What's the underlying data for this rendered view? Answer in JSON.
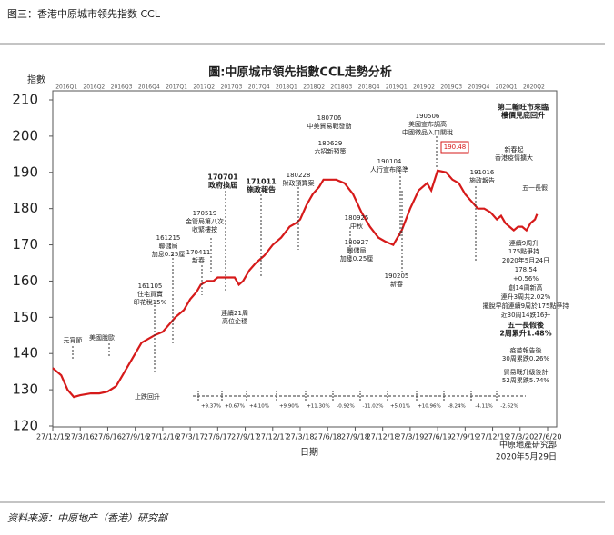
{
  "header": "图三：香港中原城市领先指数 CCL",
  "footer": "资料来源：中原地产（香港）研究部",
  "chart_data": {
    "type": "line",
    "title": "圖:中原城市領先指數CCL走勢分析",
    "y_label": "指數",
    "x_label": "日期",
    "source": "中原地產研究部",
    "date": "2020年5月29日",
    "color": "#d61a1a",
    "quarters": [
      "2016Q1",
      "2016Q2",
      "2016Q3",
      "2016Q4",
      "2017Q1",
      "2017Q2",
      "2017Q3",
      "2017Q4",
      "2018Q1",
      "2018Q2",
      "2018Q3",
      "2018Q4",
      "2019Q1",
      "2019Q2",
      "2019Q3",
      "2019Q4",
      "2020Q1",
      "2020Q2"
    ],
    "x": [
      0,
      4,
      7,
      10,
      13,
      18,
      22,
      26,
      30,
      33,
      36,
      39,
      42,
      45,
      48,
      52,
      55,
      58,
      62,
      65,
      68,
      70,
      73,
      76,
      78,
      82,
      86,
      88,
      90,
      93,
      96,
      100,
      104,
      108,
      112,
      115,
      117,
      120,
      123,
      126,
      128,
      130,
      134,
      138,
      142,
      146,
      150,
      154,
      157,
      161,
      165,
      169,
      173,
      177,
      179,
      182,
      186,
      189,
      192,
      195,
      198,
      201,
      204,
      207,
      210,
      212,
      214,
      216,
      218,
      220,
      222,
      224,
      226,
      228,
      229
    ],
    "values": [
      136,
      134,
      130,
      128,
      128.5,
      129,
      129,
      129.5,
      131,
      134,
      137,
      140,
      143,
      144,
      145,
      146,
      148,
      150,
      152,
      155,
      157,
      159,
      160,
      160,
      161,
      161,
      161,
      159,
      160,
      163,
      165,
      167,
      170,
      172,
      175,
      176,
      177,
      181,
      184,
      186,
      188,
      188,
      188,
      187,
      184,
      179,
      175,
      172,
      171,
      170,
      174,
      180,
      185,
      187,
      185,
      190.5,
      190,
      188,
      187,
      184,
      182,
      180,
      180,
      179,
      177,
      178,
      176,
      175,
      174,
      175,
      175,
      174,
      176,
      177,
      178.5
    ],
    "xlim": [
      0,
      234
    ],
    "xticks": [
      {
        "value": 0,
        "label": "27/12/15"
      },
      {
        "value": 13,
        "label": "27/3/16"
      },
      {
        "value": 26,
        "label": "27/6/16"
      },
      {
        "value": 39,
        "label": "27/9/16"
      },
      {
        "value": 52,
        "label": "27/12/16"
      },
      {
        "value": 65,
        "label": "27/3/17"
      },
      {
        "value": 78,
        "label": "27/6/17"
      },
      {
        "value": 91,
        "label": "27/9/17"
      },
      {
        "value": 104,
        "label": "27/12/17"
      },
      {
        "value": 117,
        "label": "27/3/18"
      },
      {
        "value": 130,
        "label": "27/6/18"
      },
      {
        "value": 143,
        "label": "27/9/18"
      },
      {
        "value": 156,
        "label": "27/12/18"
      },
      {
        "value": 169,
        "label": "27/3/19"
      },
      {
        "value": 182,
        "label": "27/6/19"
      },
      {
        "value": 195,
        "label": "27/9/19"
      },
      {
        "value": 208,
        "label": "27/12/19"
      },
      {
        "value": 221,
        "label": "27/3/20"
      },
      {
        "value": 234,
        "label": "27/6/20"
      }
    ],
    "ylim": [
      120,
      210
    ],
    "yticks": [
      120,
      130,
      140,
      150,
      160,
      170,
      180,
      190,
      200,
      210
    ],
    "annotations": [
      {
        "lines": [
          "元宵節"
        ]
      },
      {
        "lines": [
          "美國脫歐"
        ]
      },
      {
        "lines": [
          "止跌回升"
        ]
      },
      {
        "lines": [
          "161105",
          "住宅買賣",
          "印花稅15%"
        ]
      },
      {
        "lines": [
          "161215",
          "聯儲局",
          "加息0.25厘"
        ]
      },
      {
        "lines": [
          "170411",
          "新春"
        ]
      },
      {
        "lines": [
          "170519",
          "金管局第八次",
          "收緊樓按"
        ]
      },
      {
        "lines": [
          "170701",
          "政府換屆"
        ]
      },
      {
        "lines": [
          "171011",
          "施政報告"
        ]
      },
      {
        "lines": [
          "180228",
          "財政預算案"
        ]
      },
      {
        "lines": [
          "180706",
          "中美貿易戰發動"
        ]
      },
      {
        "lines": [
          "180629",
          "六招新預策"
        ]
      },
      {
        "lines": [
          "180925",
          "中秋"
        ]
      },
      {
        "lines": [
          "180927",
          "聯儲局",
          "加息0.25厘"
        ]
      },
      {
        "lines": [
          "190104",
          "人行宣布降準"
        ]
      },
      {
        "lines": [
          "190205",
          "新春"
        ]
      },
      {
        "lines": [
          "190506",
          "美國宣布調高",
          "中國徵品入口關稅"
        ]
      },
      {
        "lines": [
          "190.48"
        ]
      },
      {
        "lines": [
          "191016",
          "施政報告"
        ]
      },
      {
        "lines": [
          "第二輪旺市來臨",
          "樓價見底回升"
        ]
      },
      {
        "lines": [
          "新春起",
          "香港疫情擴大"
        ]
      },
      {
        "lines": [
          "五一長假"
        ]
      },
      {
        "lines": [
          "連續9周升",
          "175點爭持"
        ]
      },
      {
        "lines": [
          "2020年5月24日",
          "178.54",
          "+0.56%",
          "創14周新高",
          "連升3周共2.02%",
          "擺脫早前連續9周於175點爭持",
          "近30周14跌16升"
        ]
      },
      {
        "lines": [
          "五一長假後",
          "2周累升1.48%"
        ]
      },
      {
        "lines": [
          "疫苗報告後",
          "30周累跌0.26%"
        ]
      },
      {
        "lines": [
          "貿易戰升級後計",
          "52周累跌5.74%"
        ]
      },
      {
        "lines": [
          "連續21周",
          "高位企穩"
        ]
      }
    ],
    "periods": [
      "+9.37%",
      "+0.67%",
      "+4.10%",
      "+9.90%",
      "+11.30%",
      "-0.92%",
      "-11.02%",
      "+5.01%",
      "+10.96%",
      "-8.24%",
      "-4.11%",
      "-2.62%"
    ]
  }
}
